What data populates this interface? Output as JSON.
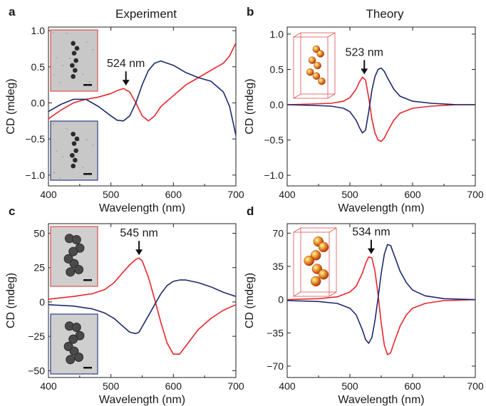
{
  "column_titles": [
    "Experiment",
    "Theory"
  ],
  "colors": {
    "red": "#e8262b",
    "blue": "#1d2a6e",
    "frame_red": "#e05a5a",
    "frame_blue": "#3a4a8a"
  },
  "chart_data": [
    {
      "type": "line",
      "panel": "a",
      "title": "Experiment",
      "xlabel": "Wavelength (nm)",
      "ylabel": "CD (mdeg)",
      "xlim": [
        400,
        700
      ],
      "ylim": [
        -1.15,
        1.05
      ],
      "xticks": [
        400,
        500,
        600,
        700
      ],
      "yticks": [
        -1.0,
        -0.5,
        0.0,
        0.5,
        1.0
      ],
      "ytick_labels": [
        "−1.0",
        "−0.5",
        "0.0",
        "0.5",
        "1.0"
      ],
      "annotation": {
        "text": "524 nm",
        "x": 524
      },
      "insets": [
        "sem-red",
        "sem-blue"
      ],
      "series": [
        {
          "color": "red",
          "x": [
            400,
            420,
            440,
            460,
            480,
            500,
            510,
            520,
            530,
            540,
            550,
            560,
            570,
            580,
            600,
            620,
            640,
            660,
            680,
            690,
            700
          ],
          "y": [
            -0.22,
            -0.1,
            0.0,
            0.05,
            0.08,
            0.13,
            0.17,
            0.2,
            0.15,
            0.0,
            -0.18,
            -0.25,
            -0.18,
            -0.05,
            0.1,
            0.25,
            0.35,
            0.45,
            0.55,
            0.65,
            0.83
          ]
        },
        {
          "color": "blue",
          "x": [
            400,
            420,
            440,
            460,
            480,
            500,
            510,
            520,
            530,
            540,
            550,
            560,
            570,
            580,
            600,
            620,
            640,
            660,
            680,
            690,
            700
          ],
          "y": [
            -0.12,
            -0.02,
            0.05,
            0.05,
            -0.05,
            -0.18,
            -0.24,
            -0.25,
            -0.18,
            0.0,
            0.25,
            0.45,
            0.55,
            0.58,
            0.52,
            0.42,
            0.35,
            0.3,
            0.15,
            -0.05,
            -0.45
          ]
        }
      ]
    },
    {
      "type": "line",
      "panel": "b",
      "title": "Theory",
      "xlabel": "Wavelength (nm)",
      "ylabel": "CD (mdeg)",
      "xlim": [
        400,
        700
      ],
      "ylim": [
        -1.15,
        1.1
      ],
      "xticks": [
        400,
        500,
        600,
        700
      ],
      "yticks": [
        -1.0,
        -0.5,
        0.0,
        0.5,
        1.0
      ],
      "ytick_labels": [
        "−1.0",
        "−0.5",
        "0.0",
        "0.5",
        "1.0"
      ],
      "annotation": {
        "text": "523 nm",
        "x": 523
      },
      "insets": [
        "model-small"
      ],
      "series": [
        {
          "color": "red",
          "x": [
            400,
            440,
            470,
            490,
            500,
            510,
            515,
            520,
            525,
            530,
            535,
            540,
            545,
            550,
            555,
            560,
            570,
            580,
            600,
            630,
            670,
            700
          ],
          "y": [
            0.0,
            0.01,
            0.02,
            0.05,
            0.1,
            0.22,
            0.32,
            0.39,
            0.35,
            0.1,
            -0.2,
            -0.4,
            -0.5,
            -0.52,
            -0.47,
            -0.38,
            -0.22,
            -0.12,
            -0.05,
            -0.02,
            0.0,
            0.0
          ]
        },
        {
          "color": "blue",
          "x": [
            400,
            440,
            470,
            490,
            500,
            510,
            515,
            520,
            525,
            530,
            535,
            540,
            545,
            550,
            555,
            560,
            570,
            580,
            600,
            630,
            670,
            700
          ],
          "y": [
            0.0,
            -0.01,
            -0.02,
            -0.05,
            -0.1,
            -0.22,
            -0.32,
            -0.4,
            -0.36,
            -0.1,
            0.2,
            0.4,
            0.5,
            0.52,
            0.47,
            0.38,
            0.22,
            0.12,
            0.05,
            0.02,
            0.0,
            0.0
          ]
        }
      ]
    },
    {
      "type": "line",
      "panel": "c",
      "xlabel": "Wavelength (nm)",
      "ylabel": "CD (mdeg)",
      "xlim": [
        400,
        700
      ],
      "ylim": [
        -55,
        57
      ],
      "xticks": [
        400,
        500,
        600,
        700
      ],
      "yticks": [
        -50,
        -25,
        0,
        25,
        50
      ],
      "ytick_labels": [
        "−50",
        "−25",
        "0",
        "25",
        "50"
      ],
      "annotation": {
        "text": "545 nm",
        "x": 545
      },
      "insets": [
        "sem-red",
        "sem-blue"
      ],
      "series": [
        {
          "color": "red",
          "x": [
            400,
            440,
            470,
            490,
            505,
            520,
            530,
            540,
            545,
            550,
            560,
            570,
            580,
            590,
            600,
            610,
            620,
            640,
            660,
            680,
            700
          ],
          "y": [
            2,
            4,
            6,
            9,
            14,
            22,
            27,
            31,
            32,
            30,
            18,
            2,
            -15,
            -30,
            -38,
            -38,
            -32,
            -20,
            -12,
            -6,
            -2
          ]
        },
        {
          "color": "blue",
          "x": [
            400,
            440,
            470,
            490,
            505,
            520,
            530,
            540,
            545,
            550,
            560,
            570,
            580,
            590,
            600,
            610,
            620,
            640,
            660,
            680,
            700
          ],
          "y": [
            -2,
            -3,
            -5,
            -8,
            -12,
            -18,
            -22,
            -23,
            -22,
            -18,
            -10,
            -2,
            6,
            12,
            15,
            16,
            16,
            14,
            11,
            7,
            4
          ]
        }
      ]
    },
    {
      "type": "line",
      "panel": "d",
      "xlabel": "Wavelength (nm)",
      "ylabel": "CD (mdeg)",
      "xlim": [
        400,
        700
      ],
      "ylim": [
        -82,
        80
      ],
      "xticks": [
        400,
        500,
        600,
        700
      ],
      "yticks": [
        -70,
        -35,
        0,
        35,
        70
      ],
      "ytick_labels": [
        "−70",
        "−35",
        "0",
        "35",
        "70"
      ],
      "annotation": {
        "text": "534 nm",
        "x": 534
      },
      "insets": [
        "model-large"
      ],
      "series": [
        {
          "color": "red",
          "x": [
            400,
            450,
            480,
            500,
            510,
            520,
            525,
            530,
            535,
            540,
            545,
            550,
            555,
            560,
            565,
            570,
            580,
            590,
            600,
            620,
            650,
            700
          ],
          "y": [
            0,
            1,
            3,
            8,
            14,
            28,
            38,
            45,
            44,
            30,
            5,
            -25,
            -48,
            -58,
            -56,
            -46,
            -28,
            -16,
            -9,
            -4,
            -1,
            0
          ]
        },
        {
          "color": "blue",
          "x": [
            400,
            450,
            480,
            500,
            510,
            520,
            525,
            530,
            535,
            540,
            545,
            550,
            555,
            560,
            565,
            570,
            580,
            590,
            600,
            620,
            650,
            700
          ],
          "y": [
            -1,
            -2,
            -4,
            -9,
            -16,
            -32,
            -42,
            -46,
            -40,
            -22,
            2,
            28,
            48,
            58,
            57,
            48,
            30,
            18,
            10,
            4,
            1,
            0
          ]
        }
      ]
    }
  ]
}
